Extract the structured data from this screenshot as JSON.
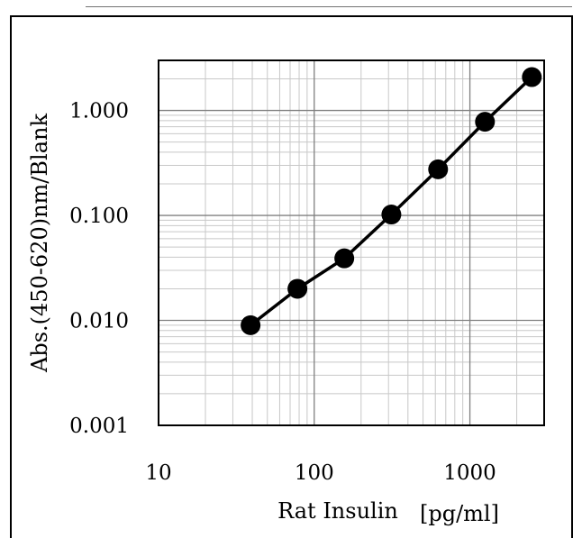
{
  "chart_data": {
    "type": "line",
    "title": "",
    "xlabel": "Rat Insulin",
    "xunit": "[pg/ml]",
    "ylabel": "Abs.(450-620)nm∕Blank",
    "xscale": "log",
    "yscale": "log",
    "xlim": [
      10,
      3000
    ],
    "ylim": [
      0.001,
      3
    ],
    "x_tick_labels": [
      "10",
      "100",
      "1000"
    ],
    "y_tick_labels": [
      "0.001",
      "0.010",
      "0.100",
      "1.000"
    ],
    "grid": true,
    "legend": "none",
    "series": [
      {
        "x": [
          39,
          78,
          156,
          313,
          625,
          1250,
          2500
        ],
        "y": [
          0.009,
          0.02,
          0.039,
          0.102,
          0.275,
          0.78,
          2.08
        ]
      }
    ],
    "colors": {
      "line": "#000000",
      "marker": "#000000",
      "major_grid": "#808080",
      "minor_grid": "#c8c8c8"
    }
  }
}
